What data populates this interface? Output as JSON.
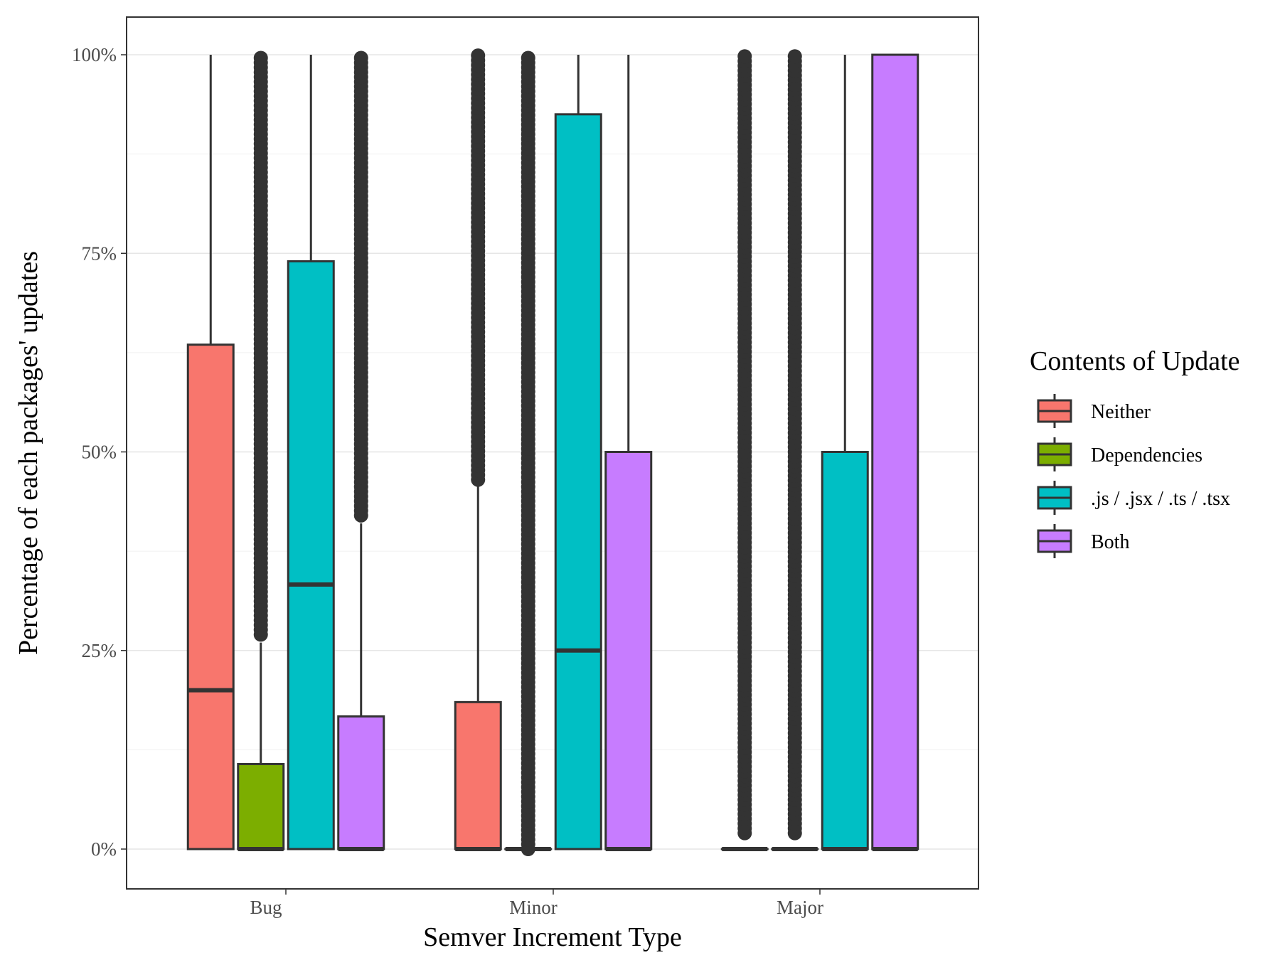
{
  "chart_data": {
    "type": "boxplot",
    "xlabel": "Semver Increment Type",
    "ylabel": "Percentage of each packages' updates",
    "ylim": [
      -0.1,
      2.1
    ],
    "grid": true,
    "y_ticks": [
      {
        "value": 0,
        "label": "0%"
      },
      {
        "value": 0.25,
        "label": "25%"
      },
      {
        "value": 0.5,
        "label": "50%"
      },
      {
        "value": 0.75,
        "label": "75%"
      },
      {
        "value": 1.0,
        "label": "100%"
      }
    ],
    "categories": [
      "Bug",
      "Minor",
      "Major"
    ],
    "legend": {
      "title": "Contents of Update",
      "position": "right",
      "items": [
        {
          "label": "Neither",
          "color": "#F8766D"
        },
        {
          "label": "Dependencies",
          "color": "#7CAE00"
        },
        {
          "label": ".js / .jsx / .ts / .tsx",
          "color": "#00BFC4"
        },
        {
          "label": "Both",
          "color": "#C77CFF"
        }
      ]
    },
    "series": [
      {
        "category": "Bug",
        "group": "Neither",
        "color": "#F8766D",
        "q1": 0,
        "median": 0.2,
        "q3": 0.635,
        "whisker_low": 0,
        "whisker_high": 1.0,
        "outliers": {
          "from": null,
          "to": null
        }
      },
      {
        "category": "Bug",
        "group": "Dependencies",
        "color": "#7CAE00",
        "q1": 0,
        "median": 0,
        "q3": 0.107,
        "whisker_low": 0,
        "whisker_high": 0.26,
        "outliers": {
          "from": 0.27,
          "to": 1.0
        }
      },
      {
        "category": "Bug",
        "group": ".js / .jsx / .ts / .tsx",
        "color": "#00BFC4",
        "q1": 0,
        "median": 0.333,
        "q3": 0.74,
        "whisker_low": 0,
        "whisker_high": 1.0,
        "outliers": {
          "from": null,
          "to": null
        }
      },
      {
        "category": "Bug",
        "group": "Both",
        "color": "#C77CFF",
        "q1": 0,
        "median": 0,
        "q3": 0.167,
        "whisker_low": 0,
        "whisker_high": 0.41,
        "outliers": {
          "from": 0.42,
          "to": 1.0
        }
      },
      {
        "category": "Minor",
        "group": "Neither",
        "color": "#F8766D",
        "q1": 0,
        "median": 0,
        "q3": 0.185,
        "whisker_low": 0,
        "whisker_high": 0.46,
        "outliers": {
          "from": 0.465,
          "to": 1.0
        }
      },
      {
        "category": "Minor",
        "group": "Dependencies",
        "color": "#7CAE00",
        "q1": 0,
        "median": 0,
        "q3": 0,
        "whisker_low": 0,
        "whisker_high": 0,
        "outliers": {
          "from": 0.0,
          "to": 1.0
        }
      },
      {
        "category": "Minor",
        "group": ".js / .jsx / .ts / .tsx",
        "color": "#00BFC4",
        "q1": 0,
        "median": 0.25,
        "q3": 0.925,
        "whisker_low": 0,
        "whisker_high": 1.0,
        "outliers": {
          "from": null,
          "to": null
        }
      },
      {
        "category": "Minor",
        "group": "Both",
        "color": "#C77CFF",
        "q1": 0,
        "median": 0,
        "q3": 0.5,
        "whisker_low": 0,
        "whisker_high": 1.0,
        "outliers": {
          "from": null,
          "to": null
        }
      },
      {
        "category": "Major",
        "group": "Neither",
        "color": "#F8766D",
        "q1": 0,
        "median": 0,
        "q3": 0,
        "whisker_low": 0,
        "whisker_high": 0,
        "outliers": {
          "from": 0.02,
          "to": 1.0
        }
      },
      {
        "category": "Major",
        "group": "Dependencies",
        "color": "#7CAE00",
        "q1": 0,
        "median": 0,
        "q3": 0,
        "whisker_low": 0,
        "whisker_high": 0,
        "outliers": {
          "from": 0.02,
          "to": 1.0
        }
      },
      {
        "category": "Major",
        "group": ".js / .jsx / .ts / .tsx",
        "color": "#00BFC4",
        "q1": 0,
        "median": 0,
        "q3": 0.5,
        "whisker_low": 0,
        "whisker_high": 1.0,
        "outliers": {
          "from": null,
          "to": null
        }
      },
      {
        "category": "Major",
        "group": "Both",
        "color": "#C77CFF",
        "q1": 0,
        "median": 0,
        "q3": 1.0,
        "whisker_low": 0,
        "whisker_high": 1.0,
        "outliers": {
          "from": null,
          "to": null
        }
      }
    ]
  }
}
